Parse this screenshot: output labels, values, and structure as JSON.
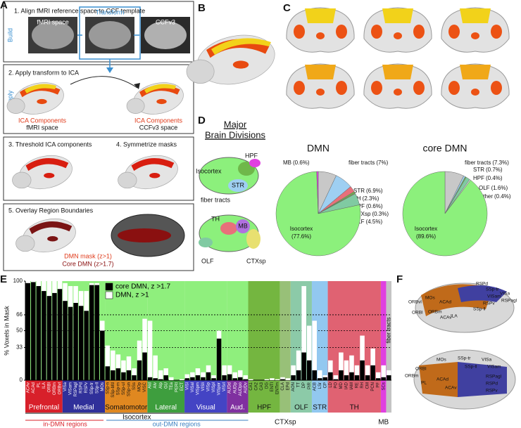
{
  "figure": {
    "panel_letters": [
      "A",
      "B",
      "C",
      "D",
      "E",
      "F"
    ],
    "panel_a": {
      "step1": "1. Align fMRI reference space to CCF template",
      "build": "Build",
      "fmri_space": "fMRI space",
      "transform": "Transform",
      "ccfv3": "CCFv3",
      "step2": "2. Apply transform to ICA",
      "apply": "Apply",
      "ica1": "ICA Components",
      "ica1_space": "fMRI space",
      "ica2": "ICA Components",
      "ica2_space": "CCFv3 space",
      "step3": "3. Threshold ICA components",
      "step4": "4. Symmetrize masks",
      "step5": "5. Overlay Region Boundaries",
      "dmn_mask": "DMN mask (z>1)",
      "core_dmn": "Core DMN (z>1.7)"
    },
    "panel_d": {
      "title_line1": "Major",
      "title_line2": "Brain Divisions",
      "labels": [
        "Isocortex",
        "HPF",
        "STR",
        "fiber tracts",
        "TH",
        "MB",
        "OLF",
        "CTXsp"
      ]
    },
    "panel_f": {
      "labels": [
        "RSPd",
        "SSp-tr",
        "VISa",
        "VISam",
        "RSPagl",
        "RSPv",
        "SSp-ll",
        "MOs",
        "ACAd",
        "ILA",
        "ACAv",
        "ORBm",
        "ORBvl",
        "ORBl",
        "MOs",
        "SSp-tr",
        "SSp-ll",
        "VISa",
        "VISam",
        "ORBl",
        "PL",
        "ACAd",
        "ACAv",
        "RSPagl",
        "RSPd",
        "RSPv",
        "ORBm"
      ]
    }
  },
  "chart_data": [
    {
      "type": "pie",
      "title": "DMN",
      "categories": [
        "fiber tracts",
        "STR",
        "TH",
        "HPF",
        "CTXsp",
        "OLF",
        "Isocortex",
        "MB"
      ],
      "values": [
        7,
        6.9,
        2.3,
        0.6,
        0.3,
        4.5,
        77.6,
        0.6
      ],
      "value_labels": [
        "(7%)",
        "(6.9%)",
        "(2.3%)",
        "(0.6%)",
        "(0.3%)",
        "(4.5%)",
        "(77.6%)",
        "(0.6%)"
      ],
      "colors": [
        "#c8c8c8",
        "#9ecff2",
        "#e8707a",
        "#6fb84a",
        "#8aa860",
        "#80caa2",
        "#8cf07c",
        "#e040e0"
      ]
    },
    {
      "type": "pie",
      "title": "core DMN",
      "categories": [
        "fiber tracts",
        "STR",
        "HPF",
        "OLF",
        "Other",
        "Isocortex"
      ],
      "values": [
        7.3,
        0.7,
        0.4,
        1.6,
        0.4,
        89.6
      ],
      "value_labels": [
        "(7.3%)",
        "(0.7%)",
        "(0.4%)",
        "(1.6%)",
        "(0.4%)",
        "(89.6%)"
      ],
      "colors": [
        "#c8c8c8",
        "#9ecff2",
        "#6fb84a",
        "#80caa2",
        "#e8e8e8",
        "#8cf07c"
      ]
    },
    {
      "type": "bar",
      "ylabel": "% Voxels in Mask",
      "ylim": [
        0,
        100
      ],
      "yticks": [
        0,
        33,
        50,
        66,
        100
      ],
      "grid": true,
      "background": "#8fef7d",
      "legend": "top",
      "annotations": {
        "isocortex": "Isocortex",
        "in_dmn": "in-DMN regions",
        "out_dmn": "out-DMN regions"
      },
      "groups": [
        {
          "name": "Prefrontal",
          "color": "#d8202a",
          "categories": [
            "ACAv",
            "ACAd",
            "PL",
            "ILA",
            "ORBl",
            "ORBm",
            "ORBvl"
          ]
        },
        {
          "name": "Medial",
          "color": "#30309a",
          "categories": [
            "VISa",
            "VISam",
            "RSPagl",
            "RSPd",
            "RSPv",
            "SSp-tr",
            "SSp-ll",
            "MOs"
          ]
        },
        {
          "name": "Somatomotor",
          "color": "#e08820",
          "categories": [
            "SSp-n",
            "SSp-bfd",
            "SSp-m",
            "SSp-ul",
            "SSp-un",
            "SSs",
            "MOp",
            "VISC"
          ]
        },
        {
          "name": "Lateral",
          "color": "#3e9e3e",
          "categories": [
            "AId",
            "AIv",
            "AIp",
            "GU",
            "TEa",
            "PERI",
            "ECT"
          ]
        },
        {
          "name": "Visual",
          "color": "#4444c4",
          "categories": [
            "VISl",
            "VISal",
            "VISpm",
            "VISli",
            "VISp",
            "VISpl",
            "VISpor",
            "VISrl"
          ]
        },
        {
          "name": "Aud.",
          "color": "#8030a0",
          "categories": [
            "AUDd",
            "AUDp",
            "AUDpo",
            "AUDv"
          ]
        },
        {
          "name": "HPF",
          "color": "#74b640",
          "categories": [
            "CA1",
            "CA2",
            "CA3",
            "DG",
            "ENTl",
            "ENTm"
          ]
        },
        {
          "name": "CTXsp",
          "color": "#98c078",
          "categories": [
            "CLA",
            "EPd"
          ]
        },
        {
          "name": "OLF",
          "color": "#8ccaa8",
          "categories": [
            "AON",
            "TT",
            "DP",
            "PIR"
          ]
        },
        {
          "name": "STR",
          "color": "#92c8f0",
          "categories": [
            "ACB",
            "LSr",
            "CP"
          ]
        },
        {
          "name": "TH",
          "color": "#e06272",
          "categories": [
            "LD",
            "PO",
            "MD",
            "IAD",
            "IAM",
            "RE",
            "RH",
            "CM",
            "PCN",
            "PF"
          ]
        },
        {
          "name": "MB",
          "color": "#e040e0",
          "categories": [
            "SCs"
          ]
        },
        {
          "name": "fiber tracts",
          "color": "#c4c4c4",
          "categories": [
            null
          ]
        }
      ],
      "series": [
        {
          "name": "DMN, z >1",
          "color": "#ffffff",
          "values": [
            100,
            100,
            100,
            100,
            100,
            100,
            100,
            98,
            95,
            95,
            90,
            90,
            98,
            98,
            60,
            35,
            30,
            26,
            20,
            24,
            12,
            40,
            62,
            60,
            25,
            10,
            12,
            3,
            0,
            1,
            6,
            8,
            12,
            8,
            15,
            5,
            50,
            15,
            15,
            8,
            10,
            5,
            1,
            0,
            0,
            1,
            2,
            1,
            3,
            2,
            15,
            30,
            95,
            55,
            60,
            10,
            5,
            20,
            5,
            28,
            20,
            25,
            15,
            45,
            15,
            32,
            8,
            15,
            10
          ]
        },
        {
          "name": "core DMN, z >1.7",
          "color": "#000000",
          "values": [
            98,
            99,
            95,
            90,
            85,
            88,
            92,
            80,
            74,
            78,
            75,
            70,
            96,
            96,
            50,
            14,
            10,
            12,
            8,
            10,
            5,
            20,
            28,
            3,
            2,
            1,
            5,
            0,
            0,
            0,
            2,
            3,
            5,
            3,
            8,
            2,
            42,
            5,
            6,
            2,
            3,
            1,
            0,
            0,
            0,
            0,
            0,
            0,
            1,
            0,
            5,
            10,
            28,
            20,
            10,
            2,
            3,
            8,
            1,
            10,
            5,
            8,
            5,
            20,
            5,
            15,
            2,
            3,
            5
          ]
        }
      ]
    }
  ]
}
